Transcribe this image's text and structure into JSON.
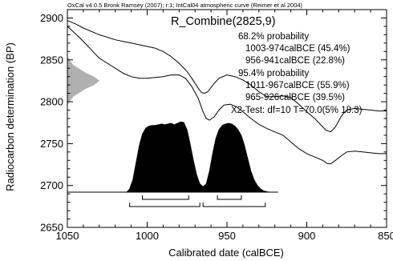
{
  "chart_data": {
    "type": "area",
    "credit": "OxCal v4.0.5 Bronk Ramsey (2007); r:1; IntCal04 atmospheric curve (Reimer et al 2004)",
    "sample_name": "R_Combine(2825,9)",
    "xlabel": "Calibrated date (calBCE)",
    "ylabel": "Radiocarbon determination (BP)",
    "xlim": [
      1050,
      850
    ],
    "ylim": [
      2650,
      2910
    ],
    "x_ticks": [
      1050,
      1000,
      950,
      900,
      850
    ],
    "x_tick_labels": [
      "1050",
      "1000",
      "950",
      "900",
      "850"
    ],
    "x_minor_step": 10,
    "y_ticks": [
      2650,
      2700,
      2750,
      2800,
      2850,
      2900
    ],
    "y_tick_labels": [
      "2650",
      "2700",
      "2750",
      "2800",
      "2850",
      "2900"
    ],
    "y_minor_step": 10,
    "annotations": [
      "68.2% probability",
      "1003-974calBCE (45.4%)",
      "956-941calBCE (22.8%)",
      "95.4% probability",
      "1011-967calBCE (55.9%)",
      "965-926calBCE (39.5%)",
      "X2-Test: df=10 T=70.0(5% 18.3)"
    ],
    "calibration_curve": {
      "upper": [
        [
          1050,
          2897
        ],
        [
          1045,
          2893
        ],
        [
          1040,
          2888
        ],
        [
          1035,
          2884
        ],
        [
          1030,
          2880
        ],
        [
          1025,
          2877
        ],
        [
          1020,
          2874
        ],
        [
          1015,
          2872
        ],
        [
          1010,
          2870
        ],
        [
          1005,
          2868
        ],
        [
          1000,
          2866
        ],
        [
          995,
          2864
        ],
        [
          990,
          2860
        ],
        [
          985,
          2854
        ],
        [
          980,
          2846
        ],
        [
          975,
          2836
        ],
        [
          972,
          2828
        ],
        [
          968,
          2816
        ],
        [
          966,
          2811
        ],
        [
          964,
          2810
        ],
        [
          962,
          2812
        ],
        [
          958,
          2822
        ],
        [
          955,
          2828
        ],
        [
          950,
          2832
        ],
        [
          945,
          2830
        ],
        [
          940,
          2826
        ],
        [
          935,
          2820
        ],
        [
          930,
          2812
        ],
        [
          925,
          2806
        ],
        [
          920,
          2806
        ],
        [
          915,
          2807
        ],
        [
          910,
          2805
        ],
        [
          905,
          2797
        ],
        [
          900,
          2788
        ],
        [
          895,
          2780
        ],
        [
          890,
          2770
        ],
        [
          888,
          2766
        ],
        [
          885,
          2764
        ],
        [
          882,
          2770
        ],
        [
          878,
          2784
        ],
        [
          875,
          2790
        ],
        [
          870,
          2792
        ],
        [
          865,
          2791
        ],
        [
          860,
          2790
        ],
        [
          855,
          2789
        ],
        [
          850,
          2789
        ]
      ],
      "lower": [
        [
          1050,
          2890
        ],
        [
          1046,
          2883
        ],
        [
          1042,
          2876
        ],
        [
          1038,
          2868
        ],
        [
          1034,
          2860
        ],
        [
          1030,
          2852
        ],
        [
          1025,
          2846
        ],
        [
          1020,
          2840
        ],
        [
          1015,
          2834
        ],
        [
          1010,
          2830
        ],
        [
          1005,
          2828
        ],
        [
          1000,
          2828
        ],
        [
          995,
          2829
        ],
        [
          990,
          2830
        ],
        [
          985,
          2832
        ],
        [
          980,
          2832
        ],
        [
          976,
          2828
        ],
        [
          972,
          2818
        ],
        [
          968,
          2804
        ],
        [
          965,
          2788
        ],
        [
          963,
          2780
        ],
        [
          961,
          2778
        ],
        [
          958,
          2782
        ],
        [
          955,
          2790
        ],
        [
          952,
          2796
        ],
        [
          948,
          2797
        ],
        [
          944,
          2794
        ],
        [
          940,
          2788
        ],
        [
          935,
          2780
        ],
        [
          930,
          2773
        ],
        [
          925,
          2768
        ],
        [
          920,
          2764
        ],
        [
          915,
          2760
        ],
        [
          910,
          2752
        ],
        [
          905,
          2744
        ],
        [
          900,
          2738
        ],
        [
          895,
          2734
        ],
        [
          890,
          2730
        ],
        [
          887,
          2726
        ],
        [
          885,
          2726
        ],
        [
          882,
          2730
        ],
        [
          878,
          2736
        ],
        [
          875,
          2740
        ],
        [
          870,
          2741
        ],
        [
          865,
          2740
        ],
        [
          860,
          2739
        ],
        [
          855,
          2738
        ],
        [
          850,
          2738
        ]
      ]
    },
    "sample_distribution": {
      "baseline_bp": 2825,
      "sigma_bp": 9,
      "x": [
        2797,
        2806,
        2815,
        2820,
        2825,
        2830,
        2835,
        2844,
        2853
      ],
      "density": [
        0.02,
        0.18,
        0.55,
        0.83,
        1.0,
        0.83,
        0.55,
        0.18,
        0.02
      ]
    },
    "calibrated_distribution": {
      "baseline_bp": 2692,
      "peak_height_bp": 85,
      "x": [
        1013,
        1011,
        1009,
        1007,
        1005,
        1003,
        1001,
        999,
        997,
        995,
        993,
        991,
        989,
        987,
        985,
        983,
        981,
        979,
        977,
        975,
        973,
        971,
        969,
        967,
        965,
        963,
        961,
        959,
        957,
        955,
        953,
        951,
        949,
        947,
        945,
        943,
        941,
        939,
        937,
        935,
        933,
        931,
        929,
        927,
        925,
        923
      ],
      "density": [
        0.0,
        0.05,
        0.18,
        0.42,
        0.66,
        0.82,
        0.9,
        0.93,
        0.94,
        0.94,
        0.95,
        0.96,
        0.95,
        0.96,
        0.97,
        0.95,
        0.97,
        0.99,
        0.98,
        0.88,
        0.68,
        0.45,
        0.25,
        0.12,
        0.08,
        0.12,
        0.3,
        0.55,
        0.76,
        0.88,
        0.94,
        0.96,
        0.97,
        0.96,
        0.93,
        0.88,
        0.8,
        0.66,
        0.48,
        0.3,
        0.18,
        0.1,
        0.05,
        0.02,
        0.01,
        0.0
      ]
    },
    "ranges_68_2": [
      [
        1003,
        974
      ],
      [
        956,
        941
      ]
    ],
    "ranges_95_4": [
      [
        1011,
        967
      ],
      [
        965,
        926
      ]
    ],
    "box": true,
    "grid": false
  }
}
